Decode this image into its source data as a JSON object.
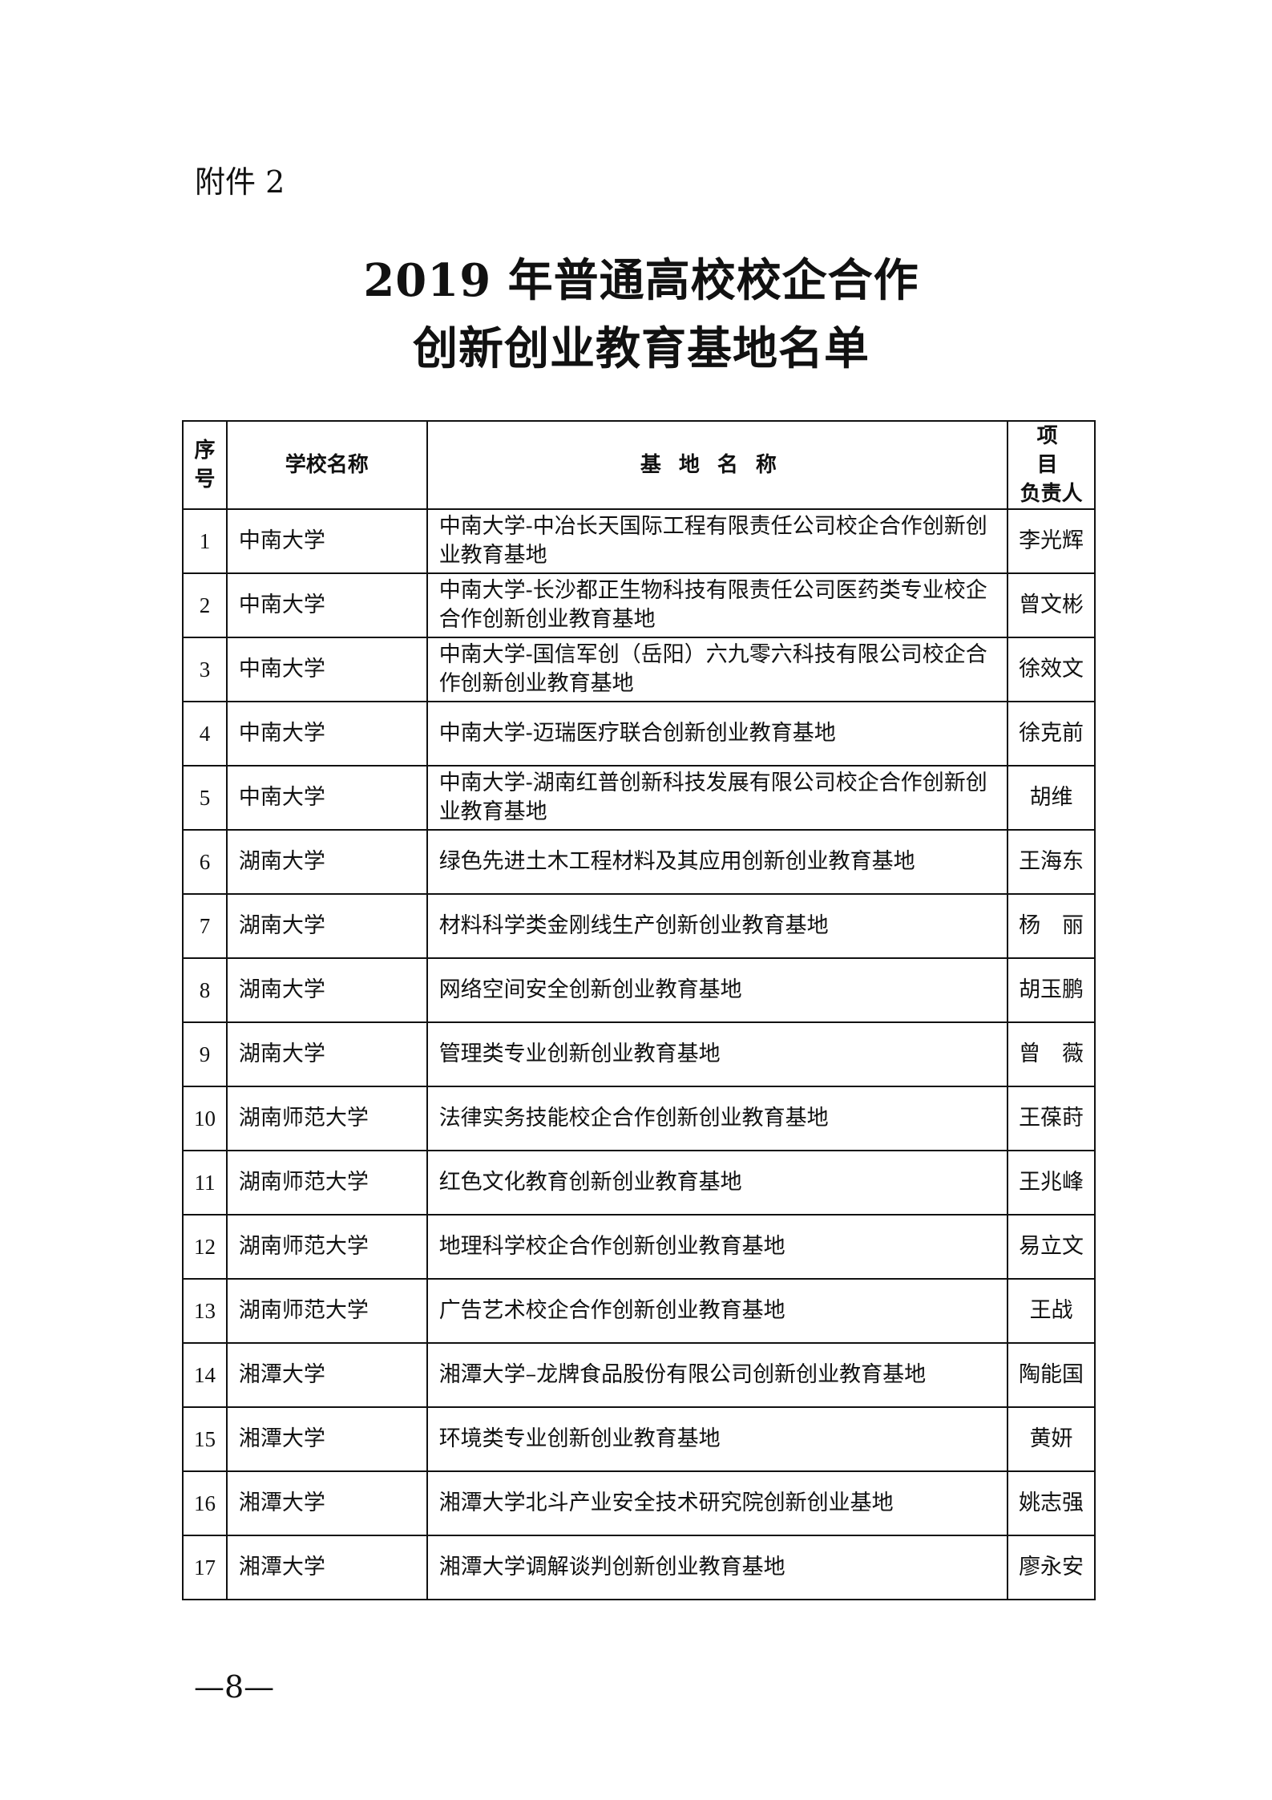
{
  "attachment_label": "附件 2",
  "title_line1": "2019 年普通高校校企合作",
  "title_line2": "创新创业教育基地名单",
  "table": {
    "headers": {
      "seq_line1": "序",
      "seq_line2": "号",
      "school": "学校名称",
      "base": "基地名称",
      "leader_line1": "项目",
      "leader_line2": "负责人"
    },
    "rows": [
      {
        "no": "1",
        "school": "中南大学",
        "base": "中南大学-中冶长天国际工程有限责任公司校企合作创新创业教育基地",
        "leader": "李光辉"
      },
      {
        "no": "2",
        "school": "中南大学",
        "base": "中南大学-长沙都正生物科技有限责任公司医药类专业校企合作创新创业教育基地",
        "leader": "曾文彬"
      },
      {
        "no": "3",
        "school": "中南大学",
        "base": "中南大学-国信军创（岳阳）六九零六科技有限公司校企合作创新创业教育基地",
        "leader": "徐效文"
      },
      {
        "no": "4",
        "school": "中南大学",
        "base": "中南大学-迈瑞医疗联合创新创业教育基地",
        "leader": "徐克前"
      },
      {
        "no": "5",
        "school": "中南大学",
        "base": "中南大学-湖南红普创新科技发展有限公司校企合作创新创业教育基地",
        "leader": "胡维"
      },
      {
        "no": "6",
        "school": "湖南大学",
        "base": "绿色先进土木工程材料及其应用创新创业教育基地",
        "leader": "王海东"
      },
      {
        "no": "7",
        "school": "湖南大学",
        "base": "材料科学类金刚线生产创新创业教育基地",
        "leader": "杨　丽"
      },
      {
        "no": "8",
        "school": "湖南大学",
        "base": "网络空间安全创新创业教育基地",
        "leader": "胡玉鹏"
      },
      {
        "no": "9",
        "school": "湖南大学",
        "base": "管理类专业创新创业教育基地",
        "leader": "曾　薇"
      },
      {
        "no": "10",
        "school": "湖南师范大学",
        "base": "法律实务技能校企合作创新创业教育基地",
        "leader": "王葆莳"
      },
      {
        "no": "11",
        "school": "湖南师范大学",
        "base": "红色文化教育创新创业教育基地",
        "leader": "王兆峰"
      },
      {
        "no": "12",
        "school": "湖南师范大学",
        "base": "地理科学校企合作创新创业教育基地",
        "leader": "易立文"
      },
      {
        "no": "13",
        "school": "湖南师范大学",
        "base": "广告艺术校企合作创新创业教育基地",
        "leader": "王战"
      },
      {
        "no": "14",
        "school": "湘潭大学",
        "base": "湘潭大学–龙牌食品股份有限公司创新创业教育基地",
        "leader": "陶能国"
      },
      {
        "no": "15",
        "school": "湘潭大学",
        "base": "环境类专业创新创业教育基地",
        "leader": "黄妍"
      },
      {
        "no": "16",
        "school": "湘潭大学",
        "base": "湘潭大学北斗产业安全技术研究院创新创业基地",
        "leader": "姚志强"
      },
      {
        "no": "17",
        "school": "湘潭大学",
        "base": "湘潭大学调解谈判创新创业教育基地",
        "leader": "廖永安"
      }
    ]
  },
  "page_number": "—8—"
}
